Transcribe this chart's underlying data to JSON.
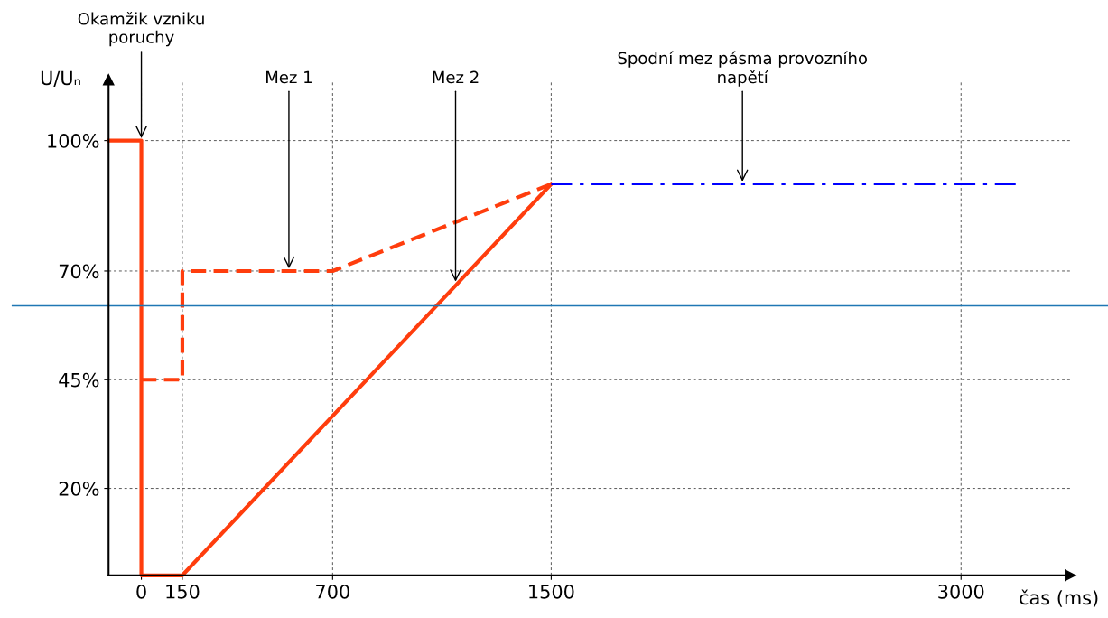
{
  "chart_data": {
    "type": "line",
    "xlabel": "čas (ms)",
    "ylabel": "U/Uₙ",
    "xlim": [
      -120,
      3400
    ],
    "ylim": [
      0,
      114
    ],
    "xticks": [
      0,
      150,
      700,
      1500,
      3000
    ],
    "yticks": [
      {
        "value": 20,
        "label": "20%"
      },
      {
        "value": 45,
        "label": "45%"
      },
      {
        "value": 70,
        "label": "70%"
      },
      {
        "value": 100,
        "label": "100%"
      }
    ],
    "grid": true,
    "legend": false,
    "marker": "none",
    "series": [
      {
        "color": "#ff3d0d",
        "line_style": "solid",
        "x": [
          -120,
          0,
          0,
          150,
          1500
        ],
        "values": [
          100,
          100,
          0,
          0,
          90
        ]
      },
      {
        "color": "#ff3d0d",
        "line_style": "dashed",
        "x": [
          0,
          150,
          150,
          700,
          1500
        ],
        "values": [
          45,
          45,
          70,
          70,
          90
        ]
      },
      {
        "color": "#0000ff",
        "line_style": "dashdot",
        "x": [
          1500,
          3200
        ],
        "values": [
          90,
          90
        ]
      }
    ],
    "ref_lines": [
      {
        "axis": "y",
        "value": 62,
        "color": "#1f77b4"
      }
    ],
    "annotations": [
      {
        "text": "Okamžik vzniku\nporuchy",
        "x": 0,
        "y": 100
      },
      {
        "text": "Mez 1",
        "x": 540,
        "y": 70
      },
      {
        "text": "Mez 2",
        "x": 1150,
        "y": 67
      },
      {
        "text": "Spodní mez pásma provozního\nnapětí",
        "x": 2200,
        "y": 90
      }
    ]
  }
}
